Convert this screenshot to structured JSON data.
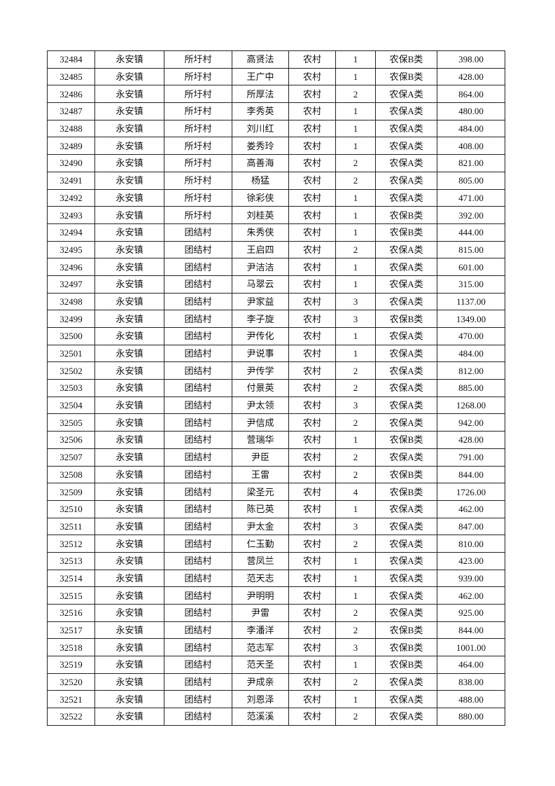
{
  "table": {
    "rows": [
      [
        "32484",
        "永安镇",
        "所圩村",
        "高贤法",
        "农村",
        "1",
        "农保B类",
        "398.00"
      ],
      [
        "32485",
        "永安镇",
        "所圩村",
        "王广中",
        "农村",
        "1",
        "农保B类",
        "428.00"
      ],
      [
        "32486",
        "永安镇",
        "所圩村",
        "所厚法",
        "农村",
        "2",
        "农保A类",
        "864.00"
      ],
      [
        "32487",
        "永安镇",
        "所圩村",
        "李秀英",
        "农村",
        "1",
        "农保A类",
        "480.00"
      ],
      [
        "32488",
        "永安镇",
        "所圩村",
        "刘川红",
        "农村",
        "1",
        "农保A类",
        "484.00"
      ],
      [
        "32489",
        "永安镇",
        "所圩村",
        "娄秀玲",
        "农村",
        "1",
        "农保A类",
        "408.00"
      ],
      [
        "32490",
        "永安镇",
        "所圩村",
        "高善海",
        "农村",
        "2",
        "农保A类",
        "821.00"
      ],
      [
        "32491",
        "永安镇",
        "所圩村",
        "杨猛",
        "农村",
        "2",
        "农保A类",
        "805.00"
      ],
      [
        "32492",
        "永安镇",
        "所圩村",
        "徐彩侠",
        "农村",
        "1",
        "农保A类",
        "471.00"
      ],
      [
        "32493",
        "永安镇",
        "所圩村",
        "刘桂英",
        "农村",
        "1",
        "农保B类",
        "392.00"
      ],
      [
        "32494",
        "永安镇",
        "团结村",
        "朱秀侠",
        "农村",
        "1",
        "农保B类",
        "444.00"
      ],
      [
        "32495",
        "永安镇",
        "团结村",
        "王启四",
        "农村",
        "2",
        "农保A类",
        "815.00"
      ],
      [
        "32496",
        "永安镇",
        "团结村",
        "尹洁洁",
        "农村",
        "1",
        "农保A类",
        "601.00"
      ],
      [
        "32497",
        "永安镇",
        "团结村",
        "马翠云",
        "农村",
        "1",
        "农保A类",
        "315.00"
      ],
      [
        "32498",
        "永安镇",
        "团结村",
        "尹家益",
        "农村",
        "3",
        "农保A类",
        "1137.00"
      ],
      [
        "32499",
        "永安镇",
        "团结村",
        "李子旋",
        "农村",
        "3",
        "农保B类",
        "1349.00"
      ],
      [
        "32500",
        "永安镇",
        "团结村",
        "尹传化",
        "农村",
        "1",
        "农保A类",
        "470.00"
      ],
      [
        "32501",
        "永安镇",
        "团结村",
        "尹说事",
        "农村",
        "1",
        "农保A类",
        "484.00"
      ],
      [
        "32502",
        "永安镇",
        "团结村",
        "尹传学",
        "农村",
        "2",
        "农保A类",
        "812.00"
      ],
      [
        "32503",
        "永安镇",
        "团结村",
        "付景英",
        "农村",
        "2",
        "农保A类",
        "885.00"
      ],
      [
        "32504",
        "永安镇",
        "团结村",
        "尹太领",
        "农村",
        "3",
        "农保A类",
        "1268.00"
      ],
      [
        "32505",
        "永安镇",
        "团结村",
        "尹信成",
        "农村",
        "2",
        "农保A类",
        "942.00"
      ],
      [
        "32506",
        "永安镇",
        "团结村",
        "营瑞华",
        "农村",
        "1",
        "农保B类",
        "428.00"
      ],
      [
        "32507",
        "永安镇",
        "团结村",
        "尹臣",
        "农村",
        "2",
        "农保A类",
        "791.00"
      ],
      [
        "32508",
        "永安镇",
        "团结村",
        "王雷",
        "农村",
        "2",
        "农保B类",
        "844.00"
      ],
      [
        "32509",
        "永安镇",
        "团结村",
        "梁圣元",
        "农村",
        "4",
        "农保B类",
        "1726.00"
      ],
      [
        "32510",
        "永安镇",
        "团结村",
        "陈已英",
        "农村",
        "1",
        "农保A类",
        "462.00"
      ],
      [
        "32511",
        "永安镇",
        "团结村",
        "尹太金",
        "农村",
        "3",
        "农保A类",
        "847.00"
      ],
      [
        "32512",
        "永安镇",
        "团结村",
        "仁玉勤",
        "农村",
        "2",
        "农保A类",
        "810.00"
      ],
      [
        "32513",
        "永安镇",
        "团结村",
        "营凤兰",
        "农村",
        "1",
        "农保A类",
        "423.00"
      ],
      [
        "32514",
        "永安镇",
        "团结村",
        "范天志",
        "农村",
        "1",
        "农保A类",
        "939.00"
      ],
      [
        "32515",
        "永安镇",
        "团结村",
        "尹明明",
        "农村",
        "1",
        "农保A类",
        "462.00"
      ],
      [
        "32516",
        "永安镇",
        "团结村",
        "尹雷",
        "农村",
        "2",
        "农保A类",
        "925.00"
      ],
      [
        "32517",
        "永安镇",
        "团结村",
        "李潘洋",
        "农村",
        "2",
        "农保B类",
        "844.00"
      ],
      [
        "32518",
        "永安镇",
        "团结村",
        "范志军",
        "农村",
        "3",
        "农保B类",
        "1001.00"
      ],
      [
        "32519",
        "永安镇",
        "团结村",
        "范天圣",
        "农村",
        "1",
        "农保B类",
        "464.00"
      ],
      [
        "32520",
        "永安镇",
        "团结村",
        "尹成亲",
        "农村",
        "2",
        "农保A类",
        "838.00"
      ],
      [
        "32521",
        "永安镇",
        "团结村",
        "刘恩泽",
        "农村",
        "1",
        "农保A类",
        "488.00"
      ],
      [
        "32522",
        "永安镇",
        "团结村",
        "范溪溪",
        "农村",
        "2",
        "农保A类",
        "880.00"
      ]
    ]
  }
}
